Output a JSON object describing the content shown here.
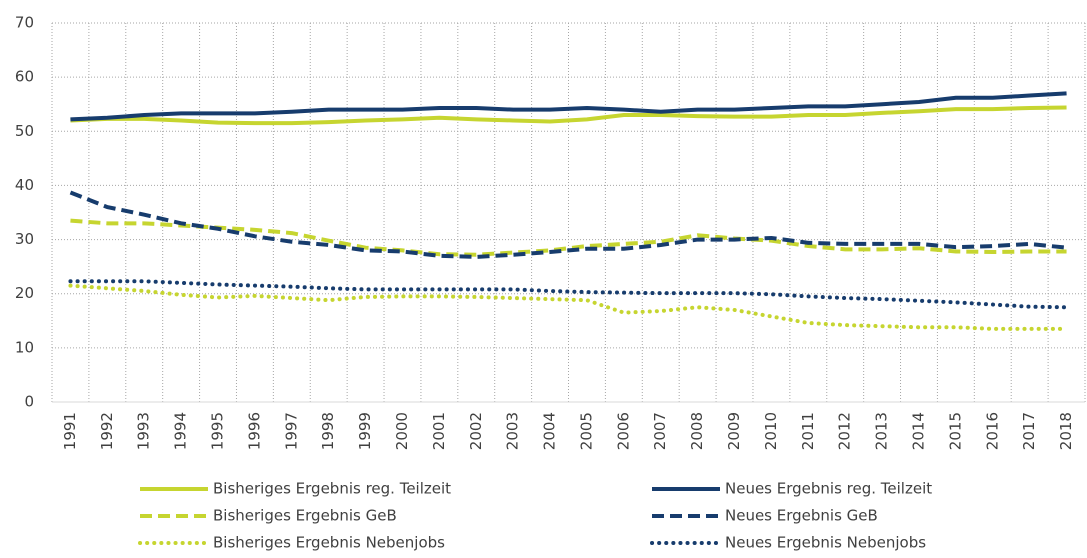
{
  "chart_data": {
    "type": "line",
    "categories": [
      "1991",
      "1992",
      "1993",
      "1994",
      "1995",
      "1996",
      "1997",
      "1998",
      "1999",
      "2000",
      "2001",
      "2002",
      "2003",
      "2004",
      "2005",
      "2006",
      "2007",
      "2008",
      "2009",
      "2010",
      "2011",
      "2012",
      "2013",
      "2014",
      "2015",
      "2016",
      "2017",
      "2018"
    ],
    "series": [
      {
        "name": "Bisheriges Ergebnis reg. Teilzeit",
        "color": "#c6d530",
        "dash": "solid",
        "values": [
          52,
          52.3,
          52.3,
          52,
          51.6,
          51.5,
          51.5,
          51.7,
          52,
          52.2,
          52.5,
          52.2,
          52,
          51.8,
          52.2,
          53,
          53,
          52.8,
          52.7,
          52.7,
          53,
          53,
          53.4,
          53.7,
          54.1,
          54.1,
          54.3,
          54.4
        ]
      },
      {
        "name": "Neues Ergebnis reg. Teilzeit",
        "color": "#173c6d",
        "dash": "solid",
        "values": [
          52.2,
          52.5,
          53,
          53.3,
          53.3,
          53.3,
          53.6,
          54,
          54,
          54,
          54.3,
          54.3,
          54,
          54,
          54.3,
          54,
          53.6,
          54,
          54,
          54.3,
          54.6,
          54.6,
          55,
          55.4,
          56.2,
          56.2,
          56.6,
          57
        ]
      },
      {
        "name": "Bisheriges Ergebnis GeB",
        "color": "#c6d530",
        "dash": "dashed",
        "values": [
          33.5,
          33,
          33,
          32.6,
          32.2,
          31.8,
          31.2,
          29.8,
          28.5,
          28,
          27.3,
          27.2,
          27.6,
          28,
          28.8,
          29.2,
          29.6,
          30.8,
          30.2,
          29.8,
          28.8,
          28.2,
          28.2,
          28.4,
          27.8,
          27.7,
          27.8,
          27.8
        ]
      },
      {
        "name": "Neues Ergebnis GeB",
        "color": "#173c6d",
        "dash": "dashed",
        "values": [
          38.7,
          36,
          34.6,
          33,
          32,
          30.6,
          29.6,
          29,
          28,
          27.8,
          27,
          26.8,
          27.2,
          27.7,
          28.3,
          28.3,
          29,
          30,
          30,
          30.3,
          29.4,
          29.2,
          29.2,
          29.2,
          28.6,
          28.8,
          29.2,
          28.5
        ]
      },
      {
        "name": "Bisheriges Ergebnis Nebenjobs",
        "color": "#c6d530",
        "dash": "dotted",
        "values": [
          21.5,
          21,
          20.5,
          19.8,
          19.3,
          19.6,
          19.2,
          18.8,
          19.4,
          19.5,
          19.5,
          19.4,
          19.2,
          19,
          18.8,
          16.5,
          16.8,
          17.5,
          17,
          15.8,
          14.6,
          14.2,
          14,
          13.8,
          13.8,
          13.5,
          13.5,
          13.5
        ]
      },
      {
        "name": "Neues Ergebnis Nebenjobs",
        "color": "#173c6d",
        "dash": "dotted",
        "values": [
          22.3,
          22.3,
          22.3,
          22,
          21.7,
          21.5,
          21.3,
          21,
          20.8,
          20.8,
          20.8,
          20.8,
          20.8,
          20.5,
          20.3,
          20.2,
          20.1,
          20.1,
          20.1,
          19.9,
          19.5,
          19.2,
          19,
          18.7,
          18.4,
          18,
          17.6,
          17.5
        ]
      }
    ],
    "ylim": [
      0,
      70
    ],
    "yticks": [
      0,
      10,
      20,
      30,
      40,
      50,
      60,
      70
    ],
    "grid": true
  }
}
